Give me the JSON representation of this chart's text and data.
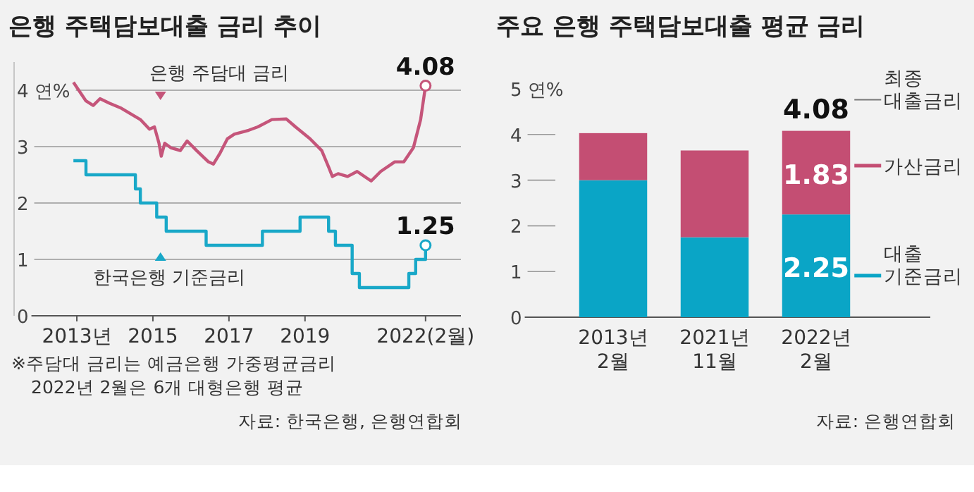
{
  "chart_data": [
    {
      "type": "line",
      "title": "은행 주택담보대출 금리 추이",
      "xlim": [
        2011.35,
        2023.1
      ],
      "ylim": [
        0,
        4.5
      ],
      "xticks": [
        {
          "value": 2013,
          "label": "2013년"
        },
        2015,
        2017,
        2019,
        {
          "value": 2022.17,
          "label": "2022(2월)"
        }
      ],
      "yticks": [
        0,
        1,
        2,
        3,
        {
          "value": 4,
          "label": "4 연%"
        }
      ],
      "grid": "y",
      "legend": "left",
      "series": [
        {
          "name": "은행 주담대 금리",
          "color": "#c5557a",
          "type": "line",
          "x": [
            2012.91,
            2013.24,
            2013.43,
            2013.61,
            2013.86,
            2014.17,
            2014.67,
            2014.91,
            2015.04,
            2015.16,
            2015.22,
            2015.31,
            2015.47,
            2015.72,
            2015.9,
            2016.15,
            2016.46,
            2016.59,
            2016.77,
            2016.96,
            2017.14,
            2017.52,
            2017.76,
            2018.13,
            2018.51,
            2018.75,
            2019.13,
            2019.44,
            2019.62,
            2019.72,
            2019.87,
            2020.12,
            2020.37,
            2020.74,
            2020.99,
            2021.36,
            2021.6,
            2021.85,
            2022.04,
            2022.17
          ],
          "values": [
            4.14,
            3.81,
            3.73,
            3.85,
            3.77,
            3.68,
            3.48,
            3.31,
            3.35,
            3.06,
            2.83,
            3.06,
            2.98,
            2.93,
            3.1,
            2.93,
            2.73,
            2.69,
            2.89,
            3.14,
            3.22,
            3.29,
            3.35,
            3.48,
            3.49,
            3.35,
            3.14,
            2.93,
            2.64,
            2.47,
            2.52,
            2.47,
            2.56,
            2.39,
            2.56,
            2.73,
            2.73,
            2.98,
            3.48,
            4.08
          ],
          "value_labels": [
            null,
            null,
            null,
            null,
            null,
            null,
            null,
            null,
            null,
            null,
            null,
            null,
            null,
            null,
            null,
            null,
            null,
            null,
            null,
            null,
            null,
            null,
            null,
            null,
            null,
            null,
            null,
            null,
            null,
            null,
            null,
            null,
            null,
            null,
            null,
            null,
            null,
            null,
            null,
            "4.08"
          ]
        },
        {
          "name": "한국은행 기준금리",
          "color": "#19a8c8",
          "type": "step",
          "x": [
            2012.91,
            2013.24,
            2014.54,
            2014.67,
            2015.1,
            2015.35,
            2016.4,
            2017.88,
            2018.87,
            2019.62,
            2019.8,
            2020.24,
            2020.43,
            2021.73,
            2021.91,
            2022.17
          ],
          "values": [
            2.75,
            2.5,
            2.25,
            2.0,
            1.75,
            1.5,
            1.25,
            1.5,
            1.75,
            1.5,
            1.25,
            0.75,
            0.5,
            0.75,
            1.0,
            1.25
          ],
          "value_labels": [
            null,
            null,
            null,
            null,
            null,
            null,
            null,
            null,
            null,
            null,
            null,
            null,
            null,
            null,
            null,
            "1.25"
          ]
        }
      ],
      "annotations": [
        "※주담대 금리는 예금은행 가중평균금리",
        "2022년 2월은 6개 대형은행 평균",
        "자료: 한국은행, 은행연합회"
      ]
    },
    {
      "type": "bar",
      "title": "주요 은행 주택담보대출 평균 금리",
      "stacked": true,
      "categories": [
        "2013년\n2월",
        "2021년\n11월",
        "2022년\n2월"
      ],
      "ylim": [
        0,
        5
      ],
      "yticks": [
        0,
        1,
        2,
        3,
        4,
        {
          "value": 5,
          "label": "5 연%"
        }
      ],
      "grid": false,
      "legend": "right",
      "series": [
        {
          "name": "대출\n기준금리",
          "color": "#0aa5c6",
          "values": [
            3.0,
            1.75,
            2.25
          ],
          "value_labels": [
            null,
            null,
            "2.25"
          ]
        },
        {
          "name": "가산금리",
          "color": "#c44e73",
          "values": [
            1.03,
            1.9,
            1.83
          ],
          "value_labels": [
            null,
            null,
            "1.83"
          ]
        }
      ],
      "totals": [
        null,
        null,
        "4.08"
      ],
      "annotations": [
        "최종\n대출금리",
        "자료: 은행연합회"
      ]
    }
  ]
}
